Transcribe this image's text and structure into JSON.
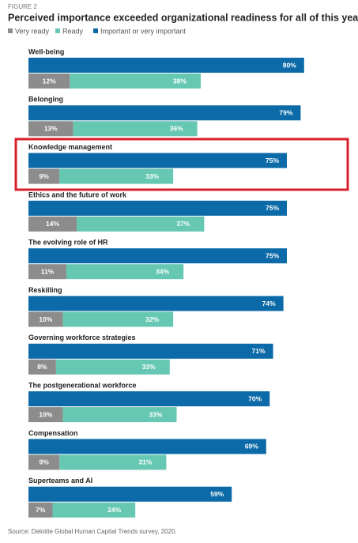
{
  "figure_label": "FIGURE 2",
  "source": "Source: Deloitte Global Human Capital Trends survey, 2020.",
  "chart_data": {
    "type": "bar",
    "title": "Perceived importance exceeded organizational readiness for all of this year’s trends",
    "categories": [
      "Well-being",
      "Belonging",
      "Knowledge management",
      "Ethics and the future of work",
      "The evolving role of HR",
      "Reskilling",
      "Governing workforce strategies",
      "The postgenerational workforce",
      "Compensation",
      "Superteams and AI"
    ],
    "series": [
      {
        "name": "Very ready",
        "color": "#8c8c8c",
        "values": [
          12,
          13,
          9,
          14,
          11,
          10,
          8,
          10,
          9,
          7
        ],
        "value_labels": [
          "12%",
          "13%",
          "9%",
          "14%",
          "11%",
          "10%",
          "8%",
          "10%",
          "9%",
          "7%"
        ]
      },
      {
        "name": "Ready",
        "color": "#66c8b2",
        "values": [
          38,
          36,
          33,
          37,
          34,
          32,
          33,
          33,
          31,
          24
        ],
        "value_labels": [
          "38%",
          "36%",
          "33%",
          "37%",
          "34%",
          "32%",
          "33%",
          "33%",
          "31%",
          "24%"
        ]
      },
      {
        "name": "Important or very important",
        "color": "#0b6aa7",
        "values": [
          80,
          79,
          75,
          75,
          75,
          74,
          71,
          70,
          69,
          59
        ],
        "value_labels": [
          "80%",
          "79%",
          "75%",
          "75%",
          "75%",
          "74%",
          "71%",
          "70%",
          "69%",
          "59%"
        ]
      }
    ]
  }
}
